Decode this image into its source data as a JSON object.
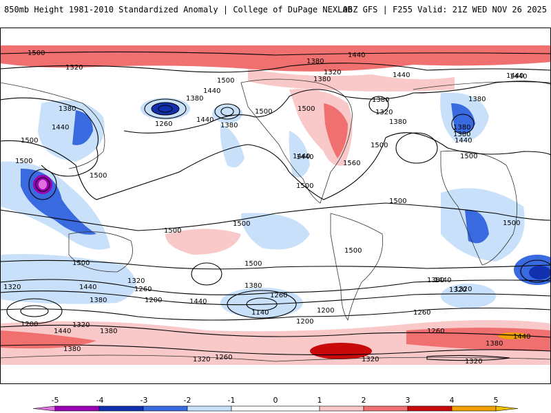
{
  "header": {
    "title": "850mb Height 1981-2010 Standardized Anomaly | College of DuPage NEXLAB",
    "run_info": "06Z GFS | F255 Valid: 21Z WED NOV 26 2025"
  },
  "colors": {
    "ocean_land_bg": "#ffffff",
    "contour": "#000000",
    "frame": "#000000"
  },
  "colorbar": {
    "ticks": [
      "-5",
      "-4",
      "-3",
      "-2",
      "-1",
      "0",
      "1",
      "2",
      "3",
      "4",
      "5"
    ],
    "segments": [
      {
        "from": -5.5,
        "to": -5,
        "color": "#e070e0"
      },
      {
        "from": -5,
        "to": -4,
        "color": "#9a00b4"
      },
      {
        "from": -4,
        "to": -3,
        "color": "#1030b0"
      },
      {
        "from": -3,
        "to": -2,
        "color": "#3a6ae0"
      },
      {
        "from": -2,
        "to": -1,
        "color": "#c8e0fa"
      },
      {
        "from": -1,
        "to": 1,
        "color": "#ffffff"
      },
      {
        "from": 1,
        "to": 2,
        "color": "#f9c8c8"
      },
      {
        "from": 2,
        "to": 3,
        "color": "#f07070"
      },
      {
        "from": 3,
        "to": 4,
        "color": "#c80a0a"
      },
      {
        "from": 4,
        "to": 5,
        "color": "#f0a000"
      },
      {
        "from": 5,
        "to": 5.5,
        "color": "#f0c000"
      }
    ]
  },
  "contour_labels": [
    "1500",
    "1320",
    "1380",
    "1440",
    "1500",
    "1440",
    "1380",
    "1320",
    "1440",
    "1440",
    "1260",
    "1380",
    "1380",
    "1500",
    "1440",
    "1500",
    "1500",
    "1380",
    "1440",
    "1380",
    "1380",
    "1440",
    "1500",
    "1440",
    "1320",
    "1380",
    "1380",
    "1440",
    "1500",
    "1380",
    "1500",
    "1560",
    "1440",
    "1500",
    "1500",
    "1500",
    "1500",
    "1500",
    "1500",
    "1500",
    "1500",
    "1440",
    "1380",
    "1320",
    "1320",
    "1260",
    "1200",
    "1380",
    "1440",
    "1260",
    "1200",
    "1140",
    "1200",
    "1320",
    "1380",
    "1440",
    "1500",
    "1380",
    "1440",
    "1320",
    "1260",
    "1200",
    "1320",
    "1380",
    "1260",
    "1440",
    "1320",
    "1260",
    "1320",
    "1380",
    "1320"
  ],
  "map": {
    "variable": "850mb Height",
    "contour_interval_m": 60,
    "projection": "equirectangular"
  }
}
